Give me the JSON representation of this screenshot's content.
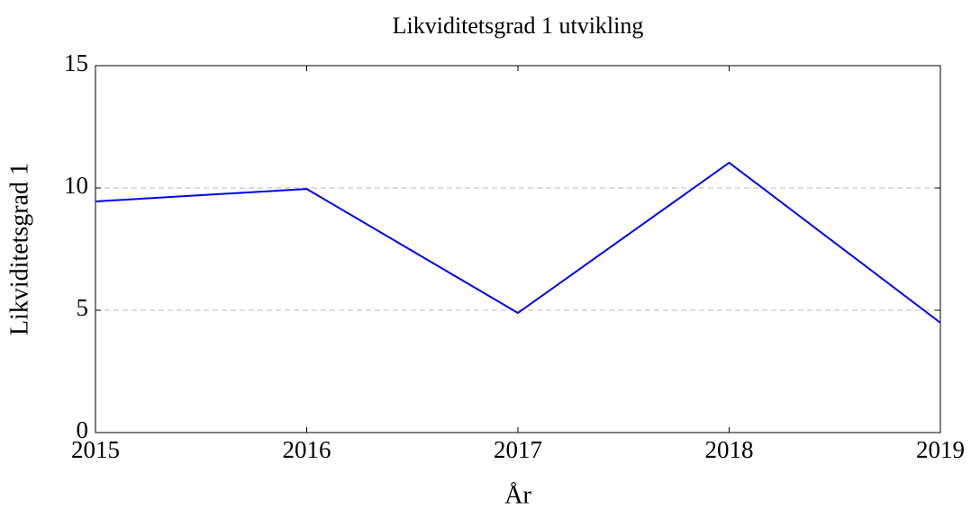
{
  "chart_data": {
    "type": "line",
    "title": "Likviditetsgrad 1 utvikling",
    "xlabel": "År",
    "ylabel": "Likviditetsgrad 1",
    "x": [
      2015,
      2016,
      2017,
      2018,
      2019
    ],
    "series": [
      {
        "name": "Likviditetsgrad 1",
        "color": "#0000ee",
        "values": [
          9.45,
          9.96,
          4.89,
          11.03,
          4.49
        ]
      }
    ],
    "xlim": [
      2015,
      2019
    ],
    "xticks": [
      2015,
      2016,
      2017,
      2018,
      2019
    ],
    "ylim": [
      0,
      15
    ],
    "yticks": [
      0,
      5,
      10,
      15
    ],
    "grid": true
  }
}
